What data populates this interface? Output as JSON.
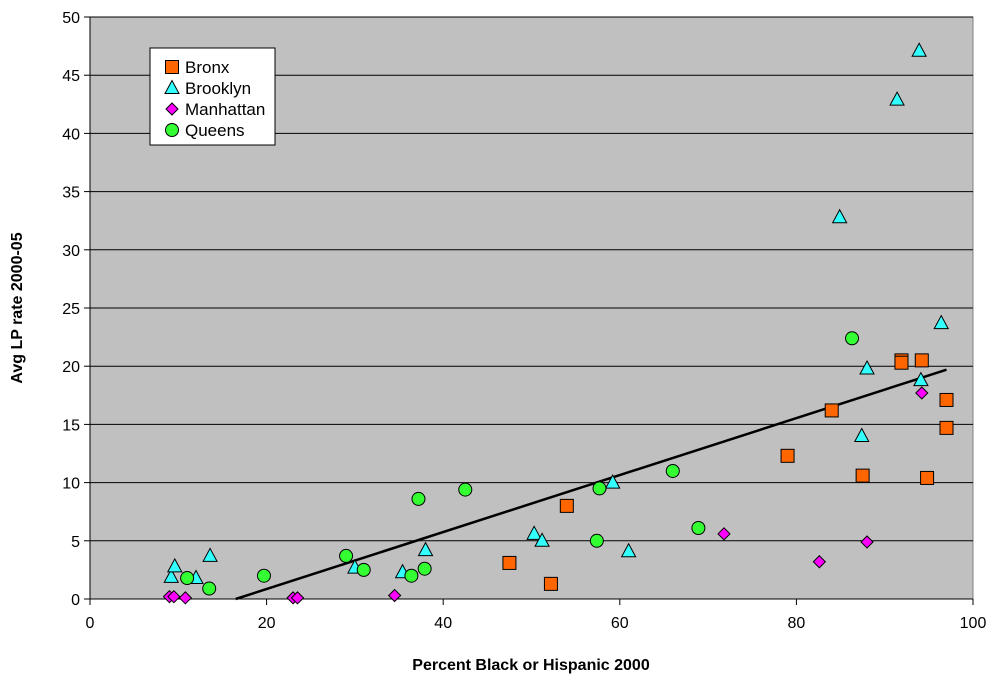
{
  "chart_data": {
    "type": "scatter",
    "xlabel": "Percent Black or Hispanic 2000",
    "ylabel": "Avg LP rate 2000-05",
    "xlim": [
      0,
      100
    ],
    "ylim": [
      0,
      50
    ],
    "x_ticks": [
      0,
      20,
      40,
      60,
      80,
      100
    ],
    "y_ticks": [
      0,
      5,
      10,
      15,
      20,
      25,
      30,
      35,
      40,
      45,
      50
    ],
    "grid": "horizontal",
    "legend_position": "top-left",
    "colors": {
      "plot_bg": "#c0c0c0",
      "bronx": "#ff6600",
      "brooklyn": "#33ffff",
      "manhattan": "#ff00ff",
      "queens": "#33ff33",
      "trendline": "#000000"
    },
    "series": [
      {
        "name": "Bronx",
        "marker": "square",
        "color": "#ff6600",
        "points": [
          [
            47.5,
            3.1
          ],
          [
            52.2,
            1.3
          ],
          [
            54,
            8
          ],
          [
            79,
            12.3
          ],
          [
            84,
            16.2
          ],
          [
            87.5,
            10.6
          ],
          [
            91.9,
            20.5
          ],
          [
            91.9,
            20.3
          ],
          [
            94.2,
            20.5
          ],
          [
            94.8,
            10.4
          ],
          [
            97,
            17.1
          ],
          [
            97,
            14.7
          ]
        ]
      },
      {
        "name": "Brooklyn",
        "marker": "triangle",
        "color": "#33ffff",
        "points": [
          [
            9.2,
            1.9
          ],
          [
            9.6,
            2.8
          ],
          [
            12,
            1.8
          ],
          [
            13.6,
            3.7
          ],
          [
            30,
            2.7
          ],
          [
            35.4,
            2.3
          ],
          [
            38,
            4.2
          ],
          [
            50.3,
            5.6
          ],
          [
            51.2,
            5
          ],
          [
            59.2,
            10
          ],
          [
            61,
            4.1
          ],
          [
            84.9,
            32.8
          ],
          [
            87.4,
            14
          ],
          [
            88,
            19.8
          ],
          [
            91.4,
            42.9
          ],
          [
            93.9,
            47.1
          ],
          [
            94.1,
            18.8
          ],
          [
            96.4,
            23.7
          ]
        ]
      },
      {
        "name": "Manhattan",
        "marker": "diamond",
        "color": "#ff00ff",
        "points": [
          [
            9,
            0.2
          ],
          [
            9.5,
            0.2
          ],
          [
            10.8,
            0.1
          ],
          [
            23,
            0.1
          ],
          [
            23.5,
            0.1
          ],
          [
            34.5,
            0.3
          ],
          [
            71.8,
            5.6
          ],
          [
            82.6,
            3.2
          ],
          [
            88,
            4.9
          ],
          [
            94.2,
            17.7
          ]
        ]
      },
      {
        "name": "Queens",
        "marker": "circle",
        "color": "#33ff33",
        "points": [
          [
            11,
            1.8
          ],
          [
            13.5,
            0.9
          ],
          [
            19.7,
            2
          ],
          [
            29,
            3.7
          ],
          [
            31,
            2.5
          ],
          [
            36.4,
            2
          ],
          [
            37.2,
            8.6
          ],
          [
            37.9,
            2.6
          ],
          [
            42.5,
            9.4
          ],
          [
            57.4,
            5
          ],
          [
            57.7,
            9.5
          ],
          [
            66,
            11
          ],
          [
            68.9,
            6.1
          ],
          [
            86.3,
            22.4
          ]
        ]
      }
    ],
    "trendline": {
      "x": [
        16.5,
        97
      ],
      "y": [
        0,
        19.7
      ]
    }
  }
}
